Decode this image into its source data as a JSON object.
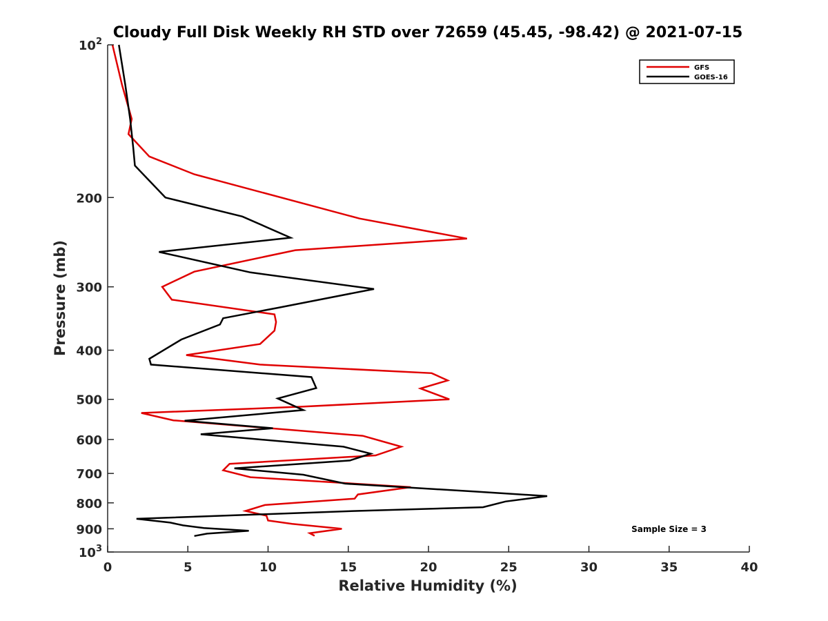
{
  "chart_data": {
    "type": "line",
    "title": "Cloudy Full Disk Weekly RH STD over 72659 (45.45, -98.42) @ 2021-07-15",
    "xlabel": "Relative Humidity (%)",
    "ylabel": "Pressure (mb)",
    "xlim": [
      0,
      40
    ],
    "ylim": [
      100,
      1000
    ],
    "y_scale": "log",
    "y_reversed": true,
    "x_ticks": [
      0,
      5,
      10,
      15,
      20,
      25,
      30,
      35,
      40
    ],
    "y_ticks": [
      {
        "value": 100,
        "label": "10",
        "sup": "2"
      },
      {
        "value": 200,
        "label": "200",
        "sup": ""
      },
      {
        "value": 300,
        "label": "300",
        "sup": ""
      },
      {
        "value": 400,
        "label": "400",
        "sup": ""
      },
      {
        "value": 500,
        "label": "500",
        "sup": ""
      },
      {
        "value": 600,
        "label": "600",
        "sup": ""
      },
      {
        "value": 700,
        "label": "700",
        "sup": ""
      },
      {
        "value": 800,
        "label": "800",
        "sup": ""
      },
      {
        "value": 900,
        "label": "900",
        "sup": ""
      },
      {
        "value": 1000,
        "label": "10",
        "sup": "3"
      }
    ],
    "grid": false,
    "legend_position": "top-right",
    "annotation": "Sample Size = 3",
    "series": [
      {
        "name": "GFS",
        "color": "#e00000",
        "points": [
          [
            0.3,
            100
          ],
          [
            0.9,
            120
          ],
          [
            1.5,
            140
          ],
          [
            1.3,
            150
          ],
          [
            2.6,
            166
          ],
          [
            5.4,
            180
          ],
          [
            15.7,
            220
          ],
          [
            22.4,
            241
          ],
          [
            11.7,
            254
          ],
          [
            5.4,
            280
          ],
          [
            3.4,
            300
          ],
          [
            4.0,
            318
          ],
          [
            10.4,
            340
          ],
          [
            10.5,
            352
          ],
          [
            10.4,
            366
          ],
          [
            9.5,
            389
          ],
          [
            4.9,
            409
          ],
          [
            9.5,
            427
          ],
          [
            20.2,
            444
          ],
          [
            21.2,
            459
          ],
          [
            19.5,
            476
          ],
          [
            21.3,
            500
          ],
          [
            12.1,
            517
          ],
          [
            2.1,
            532
          ],
          [
            4.1,
            550
          ],
          [
            15.9,
            590
          ],
          [
            18.3,
            620
          ],
          [
            16.7,
            645
          ],
          [
            7.6,
            670
          ],
          [
            7.2,
            690
          ],
          [
            8.9,
            712
          ],
          [
            18.9,
            745
          ],
          [
            15.6,
            770
          ],
          [
            15.4,
            785
          ],
          [
            9.8,
            808
          ],
          [
            8.6,
            830
          ],
          [
            9.9,
            848
          ],
          [
            10.0,
            867
          ],
          [
            11.5,
            880
          ],
          [
            14.6,
            900
          ],
          [
            12.6,
            918
          ],
          [
            12.9,
            929
          ]
        ]
      },
      {
        "name": "GOES-16",
        "color": "#000000",
        "points": [
          [
            0.7,
            100
          ],
          [
            1.1,
            120
          ],
          [
            1.4,
            140
          ],
          [
            1.6,
            160
          ],
          [
            1.7,
            173
          ],
          [
            3.6,
            200
          ],
          [
            8.4,
            218
          ],
          [
            11.4,
            240
          ],
          [
            3.2,
            256
          ],
          [
            8.9,
            281
          ],
          [
            16.6,
            303
          ],
          [
            10.6,
            330
          ],
          [
            7.2,
            346
          ],
          [
            7.0,
            356
          ],
          [
            4.6,
            381
          ],
          [
            2.6,
            416
          ],
          [
            2.7,
            427
          ],
          [
            12.7,
            452
          ],
          [
            13.0,
            475
          ],
          [
            10.6,
            498
          ],
          [
            12.2,
            525
          ],
          [
            4.8,
            551
          ],
          [
            10.3,
            570
          ],
          [
            5.8,
            586
          ],
          [
            14.7,
            620
          ],
          [
            16.4,
            640
          ],
          [
            15.1,
            660
          ],
          [
            7.9,
            684
          ],
          [
            12.2,
            704
          ],
          [
            14.8,
            733
          ],
          [
            22.9,
            760
          ],
          [
            27.4,
            776
          ],
          [
            24.8,
            795
          ],
          [
            23.4,
            816
          ],
          [
            15.5,
            830
          ],
          [
            1.8,
            860
          ],
          [
            3.9,
            875
          ],
          [
            4.7,
            886
          ],
          [
            6.0,
            897
          ],
          [
            8.8,
            908
          ],
          [
            6.2,
            920
          ],
          [
            5.4,
            930
          ]
        ]
      }
    ]
  }
}
